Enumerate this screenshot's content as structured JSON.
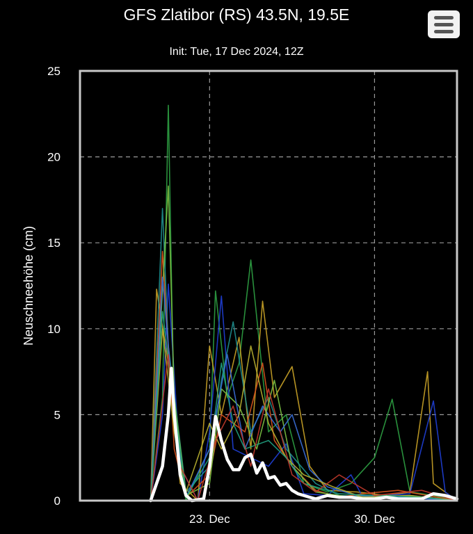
{
  "header": {
    "title": "GFS Zlatibor (RS) 43.5N, 19.5E",
    "subtitle": "Init: Tue, 17 Dec 2024, 12Z"
  },
  "menu": {
    "icon": "hamburger-menu-icon"
  },
  "colors": {
    "background": "#000000",
    "mean_line": "#ffffff",
    "ensemble_palette": [
      "#2ea043",
      "#c9a227",
      "#1f3fd6",
      "#1f8f8f",
      "#d9541e",
      "#7ac043",
      "#3a6fd8",
      "#b8b030",
      "#20a080",
      "#c0392b"
    ]
  },
  "chart_data": {
    "type": "line",
    "title": "",
    "ylabel": "Neuschneehöhe (cm)",
    "xlabel": "",
    "ylim": [
      0,
      25
    ],
    "xlim": [
      "2024-12-17T12:00",
      "2025-01-02T12:00"
    ],
    "y_ticks": [
      0,
      5,
      10,
      15,
      20,
      25
    ],
    "x_ticks": [
      {
        "value": "2024-12-23",
        "label": "23. Dec"
      },
      {
        "value": "2024-12-30",
        "label": "30. Dec"
      }
    ],
    "grid": true,
    "legend": "none",
    "series": [
      {
        "role": "ensemble_mean",
        "color": "#ffffff",
        "x": [
          "2024-12-20T12:00",
          "2024-12-21T00:00",
          "2024-12-21T06:00",
          "2024-12-21T09:00",
          "2024-12-21T12:00",
          "2024-12-21T18:00",
          "2024-12-22T00:00",
          "2024-12-22T06:00",
          "2024-12-22T18:00",
          "2024-12-23T00:00",
          "2024-12-23T06:00",
          "2024-12-23T12:00",
          "2024-12-23T18:00",
          "2024-12-24T00:00",
          "2024-12-24T06:00",
          "2024-12-24T12:00",
          "2024-12-24T18:00",
          "2024-12-25T00:00",
          "2024-12-25T06:00",
          "2024-12-25T12:00",
          "2024-12-25T18:00",
          "2024-12-26T00:00",
          "2024-12-26T06:00",
          "2024-12-26T12:00",
          "2024-12-26T18:00",
          "2024-12-27T00:00",
          "2024-12-27T06:00",
          "2024-12-27T12:00",
          "2024-12-27T18:00",
          "2024-12-28T00:00",
          "2024-12-28T12:00",
          "2024-12-29T00:00",
          "2024-12-29T12:00",
          "2024-12-30T00:00",
          "2024-12-30T12:00",
          "2024-12-31T00:00",
          "2024-12-31T12:00",
          "2025-01-01T00:00",
          "2025-01-01T12:00",
          "2025-01-02T00:00",
          "2025-01-02T12:00"
        ],
        "values": [
          0,
          2.0,
          5.0,
          7.7,
          5.0,
          1.5,
          0.3,
          0,
          0.1,
          2.0,
          4.9,
          3.5,
          2.4,
          1.8,
          1.8,
          2.5,
          2.7,
          1.6,
          2.2,
          1.3,
          1.4,
          0.9,
          1.0,
          0.6,
          0.4,
          0.3,
          0.2,
          0.1,
          0.2,
          0.3,
          0.2,
          0.2,
          0.1,
          0.1,
          0.2,
          0.1,
          0.1,
          0.1,
          0.4,
          0.3,
          0.1
        ]
      },
      {
        "role": "member",
        "color": "#2ea043",
        "x": [
          "2024-12-20T12:00",
          "2024-12-21T00:00",
          "2024-12-21T06:00",
          "2024-12-21T12:00",
          "2024-12-22T00:00",
          "2024-12-23T00:00",
          "2024-12-23T06:00",
          "2024-12-23T18:00",
          "2024-12-24T06:00",
          "2024-12-24T18:00",
          "2024-12-25T12:00",
          "2024-12-26T06:00",
          "2024-12-27T00:00",
          "2024-12-28T00:00",
          "2024-12-29T00:00",
          "2024-12-30T00:00",
          "2024-12-30T18:00",
          "2024-12-31T12:00",
          "2025-01-01T12:00",
          "2025-01-02T12:00"
        ],
        "values": [
          0,
          6.0,
          23.0,
          4.0,
          0,
          3.0,
          12.2,
          6.0,
          8.0,
          14.0,
          4.0,
          5.0,
          1.0,
          0.5,
          1.0,
          2.5,
          5.9,
          0.5,
          0.3,
          0
        ]
      },
      {
        "role": "member",
        "color": "#c9a227",
        "x": [
          "2024-12-20T12:00",
          "2024-12-20T18:00",
          "2024-12-21T06:00",
          "2024-12-21T18:00",
          "2024-12-22T12:00",
          "2024-12-23T00:00",
          "2024-12-23T12:00",
          "2024-12-24T06:00",
          "2024-12-24T18:00",
          "2024-12-25T06:00",
          "2024-12-25T18:00",
          "2024-12-26T12:00",
          "2024-12-27T06:00",
          "2024-12-28T00:00",
          "2024-12-29T06:00",
          "2024-12-30T12:00",
          "2024-12-31T12:00",
          "2025-01-01T06:00",
          "2025-01-01T12:00",
          "2025-01-02T12:00"
        ],
        "values": [
          0,
          12.3,
          8.0,
          1.0,
          0,
          9.0,
          5.0,
          9.5,
          3.0,
          11.6,
          6.0,
          7.8,
          2.0,
          0.6,
          0.5,
          0.3,
          0.5,
          7.5,
          1.0,
          0
        ]
      },
      {
        "role": "member",
        "color": "#1f3fd6",
        "x": [
          "2024-12-20T12:00",
          "2024-12-21T00:00",
          "2024-12-21T06:00",
          "2024-12-21T18:00",
          "2024-12-22T12:00",
          "2024-12-23T00:00",
          "2024-12-23T12:00",
          "2024-12-24T00:00",
          "2024-12-24T18:00",
          "2024-12-25T12:00",
          "2024-12-26T06:00",
          "2024-12-27T00:00",
          "2024-12-28T00:00",
          "2024-12-29T00:00",
          "2024-12-29T12:00",
          "2024-12-30T12:00",
          "2024-12-31T12:00",
          "2025-01-01T12:00",
          "2025-01-02T00:00",
          "2025-01-02T12:00"
        ],
        "values": [
          0,
          5.0,
          12.6,
          2.0,
          0,
          4.0,
          11.9,
          3.0,
          2.5,
          2.0,
          3.3,
          0.4,
          0.3,
          1.5,
          0.2,
          0.3,
          0.4,
          5.8,
          0.5,
          0
        ]
      },
      {
        "role": "member",
        "color": "#1f8f8f",
        "x": [
          "2024-12-20T12:00",
          "2024-12-21T00:00",
          "2024-12-21T06:00",
          "2024-12-22T00:00",
          "2024-12-23T00:00",
          "2024-12-23T12:00",
          "2024-12-24T00:00",
          "2024-12-24T18:00",
          "2024-12-25T12:00",
          "2024-12-26T06:00",
          "2024-12-27T12:00",
          "2024-12-28T12:00",
          "2024-12-30T00:00",
          "2024-12-31T12:00",
          "2025-01-02T12:00"
        ],
        "values": [
          0,
          17.0,
          9.0,
          0.5,
          2.0,
          7.0,
          10.4,
          4.0,
          6.0,
          3.0,
          1.0,
          0.3,
          0.2,
          0.3,
          0
        ]
      },
      {
        "role": "member",
        "color": "#d9541e",
        "x": [
          "2024-12-20T12:00",
          "2024-12-21T00:00",
          "2024-12-21T12:00",
          "2024-12-22T00:00",
          "2024-12-23T00:00",
          "2024-12-23T12:00",
          "2024-12-24T12:00",
          "2024-12-25T06:00",
          "2024-12-25T18:00",
          "2024-12-26T12:00",
          "2024-12-27T12:00",
          "2024-12-28T12:00",
          "2024-12-29T12:00",
          "2024-12-31T00:00",
          "2025-01-02T12:00"
        ],
        "values": [
          0,
          14.5,
          3.0,
          0.2,
          1.5,
          5.0,
          4.0,
          8.0,
          3.5,
          2.0,
          0.6,
          0.2,
          0.4,
          0.6,
          0
        ]
      },
      {
        "role": "member",
        "color": "#7ac043",
        "x": [
          "2024-12-20T12:00",
          "2024-12-21T06:00",
          "2024-12-21T12:00",
          "2024-12-22T00:00",
          "2024-12-23T00:00",
          "2024-12-23T12:00",
          "2024-12-24T06:00",
          "2024-12-25T00:00",
          "2024-12-25T18:00",
          "2024-12-26T12:00",
          "2024-12-27T12:00",
          "2024-12-29T00:00",
          "2024-12-30T12:00",
          "2025-01-01T00:00",
          "2025-01-02T12:00"
        ],
        "values": [
          0,
          18.3,
          6.0,
          0.3,
          1.0,
          6.5,
          5.5,
          3.0,
          7.0,
          2.0,
          0.5,
          0.2,
          0.3,
          0.2,
          0
        ]
      },
      {
        "role": "member",
        "color": "#3a6fd8",
        "x": [
          "2024-12-20T12:00",
          "2024-12-21T00:00",
          "2024-12-21T12:00",
          "2024-12-22T00:00",
          "2024-12-23T00:00",
          "2024-12-23T18:00",
          "2024-12-24T12:00",
          "2024-12-25T06:00",
          "2024-12-26T00:00",
          "2024-12-26T12:00",
          "2024-12-27T06:00",
          "2024-12-28T00:00",
          "2024-12-29T06:00",
          "2024-12-31T00:00",
          "2025-01-02T12:00"
        ],
        "values": [
          0,
          13.0,
          5.0,
          0.2,
          3.0,
          8.5,
          3.0,
          5.5,
          4.0,
          5.0,
          1.8,
          0.8,
          0.3,
          0.2,
          0
        ]
      },
      {
        "role": "member",
        "color": "#b8b030",
        "x": [
          "2024-12-20T12:00",
          "2024-12-21T00:00",
          "2024-12-21T12:00",
          "2024-12-22T00:00",
          "2024-12-23T00:00",
          "2024-12-23T12:00",
          "2024-12-24T06:00",
          "2024-12-24T18:00",
          "2024-12-25T12:00",
          "2024-12-26T06:00",
          "2024-12-27T00:00",
          "2024-12-28T06:00",
          "2024-12-29T12:00",
          "2024-12-31T12:00",
          "2025-01-02T12:00"
        ],
        "values": [
          0,
          10.0,
          4.0,
          0.5,
          4.5,
          3.0,
          5.0,
          9.0,
          4.5,
          2.5,
          1.5,
          0.8,
          0.2,
          0.3,
          0
        ]
      },
      {
        "role": "member",
        "color": "#20a080",
        "x": [
          "2024-12-20T12:00",
          "2024-12-21T00:00",
          "2024-12-21T12:00",
          "2024-12-22T00:00",
          "2024-12-23T00:00",
          "2024-12-23T12:00",
          "2024-12-24T00:00",
          "2024-12-24T12:00",
          "2024-12-25T12:00",
          "2024-12-26T06:00",
          "2024-12-27T00:00",
          "2024-12-28T12:00",
          "2024-12-30T00:00",
          "2025-01-01T00:00",
          "2025-01-02T12:00"
        ],
        "values": [
          0,
          11.0,
          5.5,
          0.2,
          2.5,
          8.0,
          4.5,
          3.0,
          3.5,
          2.5,
          1.0,
          0.4,
          0.3,
          0.2,
          0
        ]
      },
      {
        "role": "member",
        "color": "#c0392b",
        "x": [
          "2024-12-20T12:00",
          "2024-12-21T06:00",
          "2024-12-21T18:00",
          "2024-12-22T12:00",
          "2024-12-23T06:00",
          "2024-12-24T00:00",
          "2024-12-24T18:00",
          "2024-12-25T12:00",
          "2024-12-26T12:00",
          "2024-12-27T12:00",
          "2024-12-28T12:00",
          "2024-12-30T00:00",
          "2025-01-01T00:00",
          "2025-01-02T12:00"
        ],
        "values": [
          0,
          8.5,
          2.0,
          0,
          3.5,
          5.5,
          2.0,
          6.5,
          1.5,
          0.5,
          1.5,
          0.3,
          0.6,
          0
        ]
      }
    ]
  }
}
